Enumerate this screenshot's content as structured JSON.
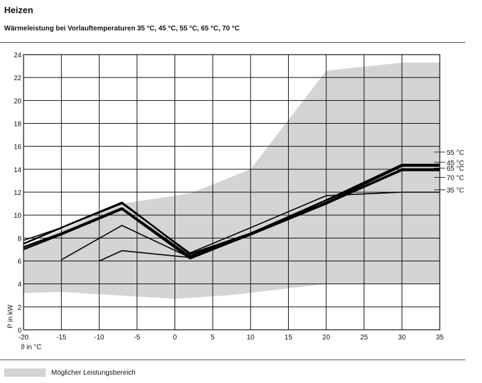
{
  "header": {
    "title": "Heizen",
    "subtitle": "Wärmeleistung bei Vorlauftemperaturen 35 °C, 45 °C, 55 °C, 65 °C, 70 °C"
  },
  "legend": {
    "area_label": "Möglicher Leistungsbereich",
    "area_color": "#d4d4d4"
  },
  "chart_data": {
    "type": "line",
    "title": "",
    "xlabel": "ϑ in °C",
    "ylabel": "P in kW",
    "xlim": [
      -20,
      35
    ],
    "ylim": [
      0,
      24
    ],
    "xticks": [
      -20,
      -15,
      -10,
      -5,
      0,
      5,
      10,
      15,
      20,
      25,
      30,
      35
    ],
    "yticks": [
      0,
      2,
      4,
      6,
      8,
      10,
      12,
      14,
      16,
      18,
      20,
      22,
      24
    ],
    "grid": true,
    "area": {
      "name": "Möglicher Leistungsbereich",
      "upper": [
        [
          -20,
          7.3
        ],
        [
          -7,
          11.0
        ],
        [
          2,
          11.9
        ],
        [
          10,
          14.0
        ],
        [
          20,
          22.6
        ],
        [
          30,
          23.3
        ],
        [
          35,
          23.3
        ]
      ],
      "lower": [
        [
          -20,
          3.2
        ],
        [
          -15,
          3.3
        ],
        [
          0,
          2.7
        ],
        [
          7,
          3.0
        ],
        [
          20,
          4.0
        ],
        [
          35,
          4.0
        ]
      ]
    },
    "series": [
      {
        "name": "55 °C",
        "values": [
          [
            -20,
            7.5
          ],
          [
            -15,
            8.9
          ],
          [
            -7,
            11.1
          ],
          [
            2,
            6.6
          ],
          [
            10,
            8.4
          ],
          [
            20,
            11.3
          ],
          [
            30,
            14.4
          ],
          [
            35,
            14.4
          ]
        ]
      },
      {
        "name": "45 °C",
        "values": [
          [
            -20,
            7.2
          ],
          [
            -15,
            8.4
          ],
          [
            -7,
            10.6
          ],
          [
            2,
            6.4
          ],
          [
            10,
            8.4
          ],
          [
            20,
            11.1
          ],
          [
            30,
            14.3
          ],
          [
            35,
            14.3
          ]
        ]
      },
      {
        "name": "65 °C",
        "values": [
          [
            -20,
            7.2
          ],
          [
            -15,
            8.4
          ],
          [
            -7,
            10.6
          ],
          [
            2,
            6.3
          ],
          [
            10,
            8.3
          ],
          [
            20,
            11.0
          ],
          [
            30,
            14.0
          ],
          [
            35,
            14.0
          ]
        ]
      },
      {
        "name": "70 °C",
        "values": [
          [
            -20,
            7.0
          ],
          [
            -15,
            8.3
          ],
          [
            -7,
            10.5
          ],
          [
            2,
            6.2
          ],
          [
            10,
            8.3
          ],
          [
            20,
            11.0
          ],
          [
            30,
            13.9
          ],
          [
            35,
            13.9
          ]
        ]
      },
      {
        "name": "35 °C",
        "values": [
          [
            -20,
            7.8
          ],
          [
            -15,
            8.9
          ],
          [
            -7,
            11.0
          ],
          [
            2,
            6.7
          ],
          [
            10,
            8.9
          ],
          [
            20,
            11.7
          ],
          [
            30,
            12.0
          ],
          [
            35,
            12.0
          ]
        ]
      },
      {
        "name": "",
        "values": [
          [
            -15,
            6.1
          ],
          [
            -7,
            9.1
          ],
          [
            2,
            6.3
          ]
        ]
      },
      {
        "name": "",
        "values": [
          [
            -10,
            6.0
          ],
          [
            -7,
            6.9
          ],
          [
            2,
            6.3
          ]
        ]
      }
    ],
    "labels": [
      {
        "text": "55 °C",
        "y": 15.5
      },
      {
        "text": "45 °C",
        "y": 14.6
      },
      {
        "text": "65 °C",
        "y": 14.1
      },
      {
        "text": "70 °C",
        "y": 13.3
      },
      {
        "text": "35 °C",
        "y": 12.2
      }
    ]
  }
}
